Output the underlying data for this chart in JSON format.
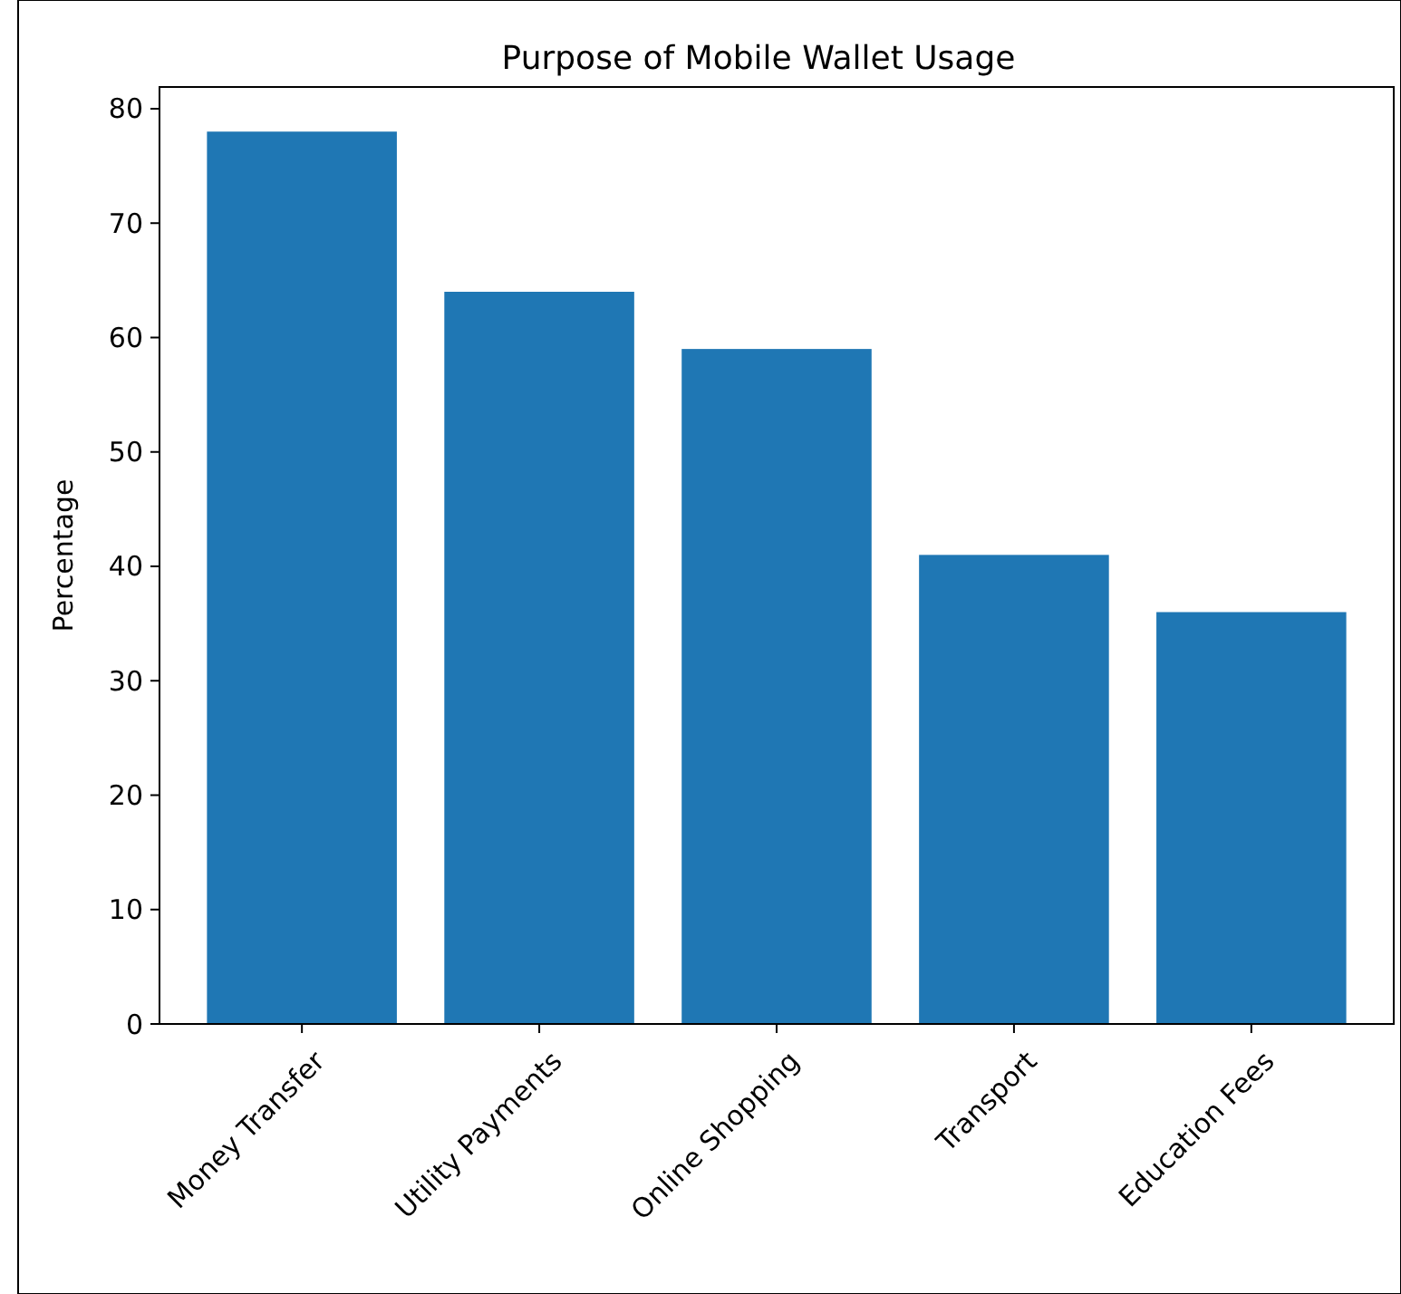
{
  "chart_data": {
    "type": "bar",
    "title": "Purpose of Mobile Wallet Usage",
    "ylabel": "Percentage",
    "categories": [
      "Money Transfer",
      "Utility Payments",
      "Online Shopping",
      "Transport",
      "Education Fees"
    ],
    "values": [
      78,
      64,
      59,
      41,
      36
    ],
    "color": "#1f77b4",
    "ylim": [
      0,
      81.9
    ],
    "yticks": [
      0,
      10,
      20,
      30,
      40,
      50,
      60,
      70,
      80
    ],
    "grid": false
  }
}
